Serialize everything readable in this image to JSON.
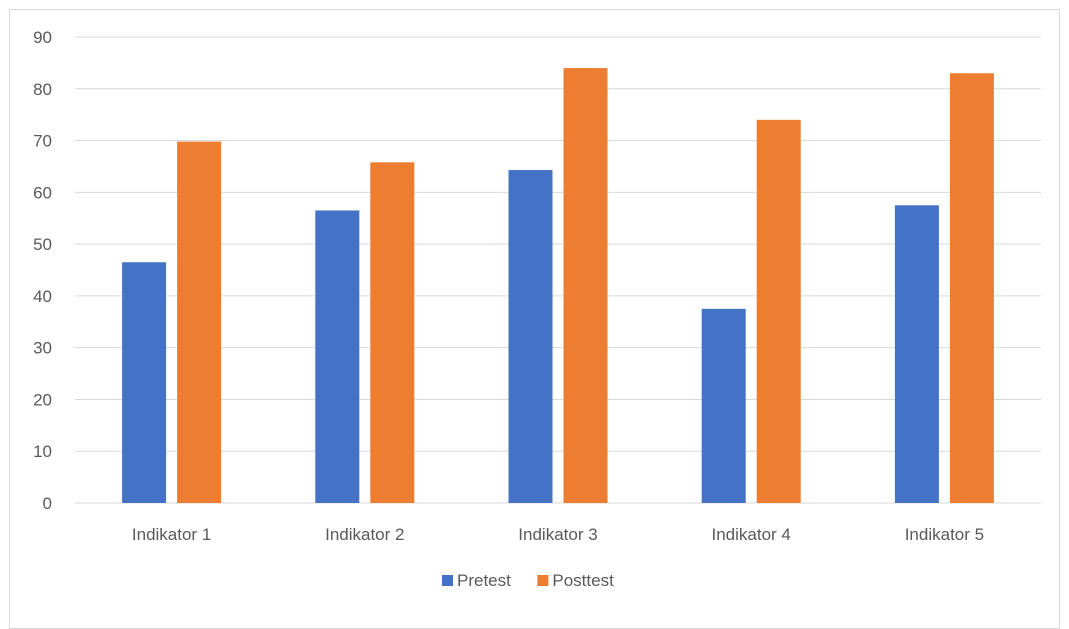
{
  "chart_data": {
    "type": "bar",
    "categories": [
      "Indikator 1",
      "Indikator 2",
      "Indikator 3",
      "Indikator 4",
      "Indikator 5"
    ],
    "series": [
      {
        "name": "Pretest",
        "values": [
          46.5,
          56.5,
          64.3,
          37.5,
          57.5
        ],
        "color": "#4472c4"
      },
      {
        "name": "Posttest",
        "values": [
          69.8,
          65.8,
          84,
          74,
          83
        ],
        "color": "#ed7d31"
      }
    ],
    "title": "",
    "xlabel": "",
    "ylabel": "",
    "ylim": [
      0,
      90
    ],
    "yticks": [
      0,
      10,
      20,
      30,
      40,
      50,
      60,
      70,
      80,
      90
    ],
    "grid": true,
    "gridline_color": "#d9d9d9",
    "legend": "bottom"
  }
}
